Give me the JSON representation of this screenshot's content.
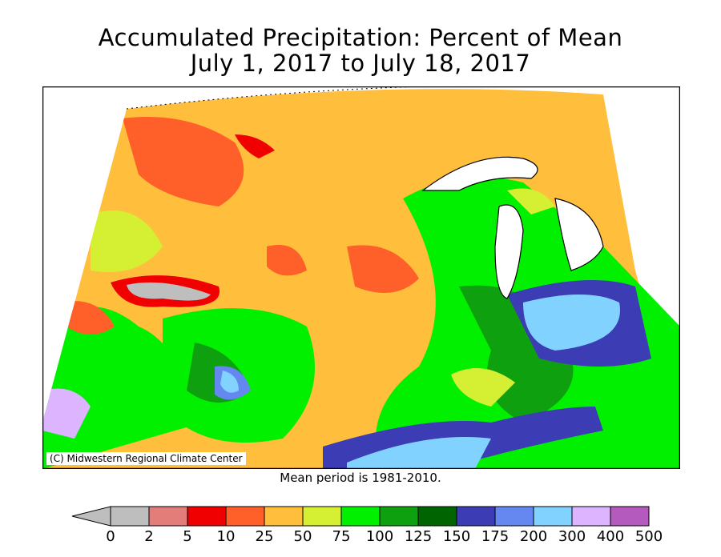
{
  "title": {
    "line1": "Accumulated Precipitation: Percent of Mean",
    "line2": "July 1, 2017 to July 18, 2017"
  },
  "credit": "(C) Midwestern Regional Climate Center",
  "mean_period": "Mean period is 1981-2010.",
  "legend": {
    "labels": [
      "0",
      "2",
      "5",
      "10",
      "25",
      "50",
      "75",
      "100",
      "125",
      "150",
      "175",
      "200",
      "300",
      "400",
      "500"
    ],
    "colors": [
      "#bebebe",
      "#e27d7a",
      "#f00000",
      "#ff5f28",
      "#ffbe3c",
      "#d5f032",
      "#00f000",
      "#0fa00f",
      "#006400",
      "#3c3cb4",
      "#6488f0",
      "#82d2ff",
      "#dcb4ff",
      "#b45abe"
    ]
  }
}
